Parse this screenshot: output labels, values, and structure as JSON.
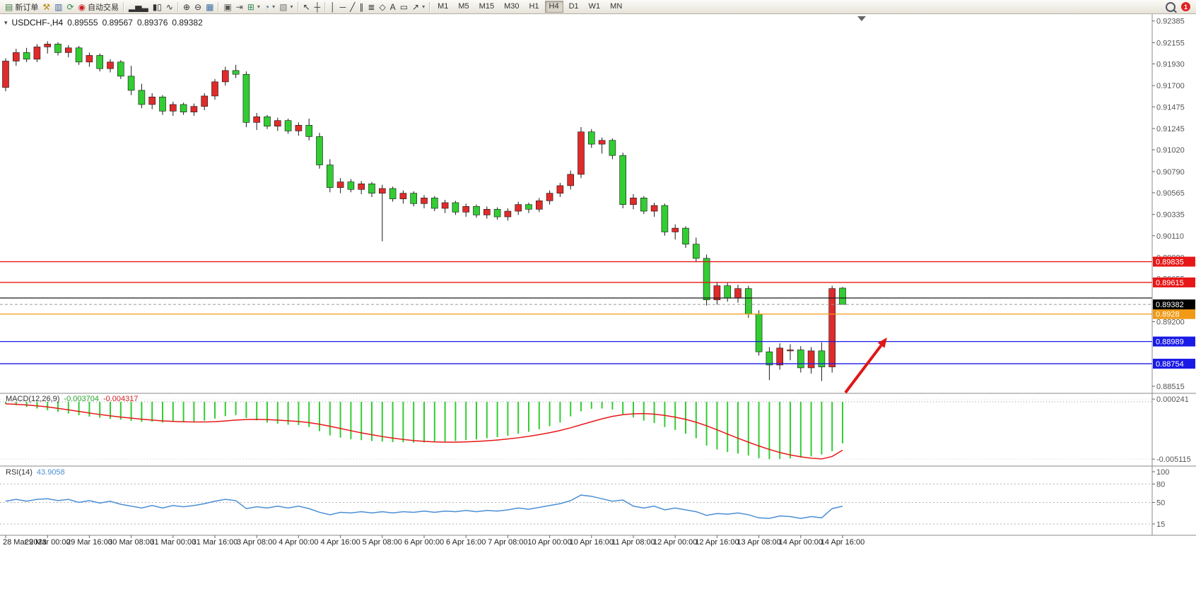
{
  "toolbar": {
    "buttons": [
      {
        "name": "new-order",
        "glyph": "▤",
        "color": "#3f7d3f",
        "label": "新订单"
      },
      {
        "name": "hammer-tool",
        "glyph": "⚒",
        "color": "#b8860b"
      },
      {
        "name": "chart-print",
        "glyph": "▥",
        "color": "#44689a"
      },
      {
        "name": "refresh",
        "glyph": "⟳",
        "color": "#2e8b57"
      },
      {
        "name": "auto-trading",
        "glyph": "◉",
        "color": "#cc2020",
        "label": "自动交易"
      },
      {
        "sep": true
      },
      {
        "name": "bar-chart-mode",
        "glyph": "▂▅▃",
        "color": "#333333"
      },
      {
        "name": "candlestick-mode",
        "glyph": "▮▯",
        "color": "#333333"
      },
      {
        "name": "line-chart-mode",
        "glyph": "∿",
        "color": "#333333"
      },
      {
        "sep": true
      },
      {
        "name": "zoom-in",
        "glyph": "⊕",
        "color": "#333333"
      },
      {
        "name": "zoom-out",
        "glyph": "⊖",
        "color": "#333333"
      },
      {
        "name": "tile-windows",
        "glyph": "▦",
        "color": "#3a6ea5"
      },
      {
        "sep": true
      },
      {
        "name": "auto-arrange",
        "glyph": "▣",
        "color": "#555555"
      },
      {
        "name": "chart-shift",
        "glyph": "⇥",
        "color": "#555555"
      },
      {
        "name": "indicators",
        "glyph": "⊞",
        "color": "#2e8b57",
        "dd": true
      },
      {
        "name": "periods",
        "glyph": "◔",
        "color": "#3a6ea5",
        "dd": true
      },
      {
        "name": "templates",
        "glyph": "▧",
        "color": "#777777",
        "dd": true
      },
      {
        "sep": true
      },
      {
        "name": "cursor",
        "glyph": "↖",
        "color": "#333333"
      },
      {
        "name": "crosshair",
        "glyph": "┼",
        "color": "#333333"
      },
      {
        "sep": true
      },
      {
        "name": "vertical-line",
        "glyph": "│",
        "color": "#333333"
      },
      {
        "name": "horizontal-line",
        "glyph": "─",
        "color": "#333333"
      },
      {
        "name": "trendline",
        "glyph": "╱",
        "color": "#333333"
      },
      {
        "name": "equidistant-channel",
        "glyph": "∥",
        "color": "#333333"
      },
      {
        "name": "fibonacci",
        "glyph": "≣",
        "color": "#333333"
      },
      {
        "name": "shapes",
        "glyph": "◇",
        "color": "#333333"
      },
      {
        "name": "text",
        "glyph": "A",
        "color": "#333333"
      },
      {
        "name": "text-label",
        "glyph": "▭",
        "color": "#333333"
      },
      {
        "name": "arrows",
        "glyph": "↗",
        "color": "#333333",
        "dd": true
      },
      {
        "sep": true
      }
    ],
    "timeframes": [
      "M1",
      "M5",
      "M15",
      "M30",
      "H1",
      "H4",
      "D1",
      "W1",
      "MN"
    ],
    "active_timeframe": "H4",
    "badge_count": "1"
  },
  "chart": {
    "title_marker": "▾",
    "symbol_title": "USDCHF-,H4",
    "open": "0.89555",
    "high": "0.89567",
    "low": "0.89376",
    "close": "0.89382"
  },
  "chart_data": {
    "type": "candlestick",
    "symbol": "USDCHF-",
    "timeframe": "H4",
    "price_axis": {
      "max": 0.9242,
      "min": 0.8847,
      "values": [
        0.92385,
        0.92155,
        0.9193,
        0.917,
        0.91475,
        0.91245,
        0.9102,
        0.9079,
        0.90565,
        0.90335,
        0.9011,
        0.8988,
        0.89655,
        0.892,
        0.88515
      ]
    },
    "time_labels": [
      {
        "i": 0,
        "t": "28 Mar 2023"
      },
      {
        "i": 4,
        "t": "29 Mar 00:00"
      },
      {
        "i": 8,
        "t": "29 Mar 16:00"
      },
      {
        "i": 12,
        "t": "30 Mar 08:00"
      },
      {
        "i": 16,
        "t": "31 Mar 00:00"
      },
      {
        "i": 20,
        "t": "31 Mar 16:00"
      },
      {
        "i": 24,
        "t": "3 Apr 08:00"
      },
      {
        "i": 28,
        "t": "4 Apr 00:00"
      },
      {
        "i": 32,
        "t": "4 Apr 16:00"
      },
      {
        "i": 36,
        "t": "5 Apr 08:00"
      },
      {
        "i": 40,
        "t": "6 Apr 00:00"
      },
      {
        "i": 44,
        "t": "6 Apr 16:00"
      },
      {
        "i": 48,
        "t": "7 Apr 08:00"
      },
      {
        "i": 52,
        "t": "10 Apr 00:00"
      },
      {
        "i": 56,
        "t": "10 Apr 16:00"
      },
      {
        "i": 60,
        "t": "11 Apr 08:00"
      },
      {
        "i": 64,
        "t": "12 Apr 00:00"
      },
      {
        "i": 68,
        "t": "12 Apr 16:00"
      },
      {
        "i": 72,
        "t": "13 Apr 08:00"
      },
      {
        "i": 76,
        "t": "14 Apr 00:00"
      },
      {
        "i": 80,
        "t": "14 Apr 16:00"
      }
    ],
    "candles_ohlc": [
      [
        0.9168,
        0.9199,
        0.9164,
        0.9196
      ],
      [
        0.9196,
        0.9209,
        0.9191,
        0.9205
      ],
      [
        0.9205,
        0.921,
        0.9195,
        0.9198
      ],
      [
        0.9198,
        0.9214,
        0.9195,
        0.9211
      ],
      [
        0.9211,
        0.9217,
        0.9204,
        0.9214
      ],
      [
        0.9214,
        0.9216,
        0.9202,
        0.9205
      ],
      [
        0.9205,
        0.9213,
        0.92,
        0.921
      ],
      [
        0.921,
        0.9212,
        0.9192,
        0.9195
      ],
      [
        0.9195,
        0.9205,
        0.919,
        0.9202
      ],
      [
        0.9202,
        0.9204,
        0.9185,
        0.9188
      ],
      [
        0.9188,
        0.9198,
        0.9184,
        0.9195
      ],
      [
        0.9195,
        0.9197,
        0.9177,
        0.918
      ],
      [
        0.918,
        0.9191,
        0.916,
        0.9165
      ],
      [
        0.9165,
        0.9172,
        0.9146,
        0.915
      ],
      [
        0.915,
        0.9162,
        0.9145,
        0.9158
      ],
      [
        0.9158,
        0.916,
        0.9139,
        0.9143
      ],
      [
        0.9143,
        0.9153,
        0.9138,
        0.915
      ],
      [
        0.915,
        0.9152,
        0.9139,
        0.9142
      ],
      [
        0.9142,
        0.9151,
        0.9138,
        0.9148
      ],
      [
        0.9148,
        0.9162,
        0.9144,
        0.9159
      ],
      [
        0.9159,
        0.9177,
        0.9155,
        0.9174
      ],
      [
        0.9174,
        0.919,
        0.917,
        0.9186
      ],
      [
        0.9186,
        0.9192,
        0.9178,
        0.9182
      ],
      [
        0.9182,
        0.9185,
        0.9126,
        0.9131
      ],
      [
        0.9131,
        0.9141,
        0.9123,
        0.9137
      ],
      [
        0.9137,
        0.9139,
        0.9124,
        0.9127
      ],
      [
        0.9127,
        0.9136,
        0.9122,
        0.9133
      ],
      [
        0.9133,
        0.9135,
        0.9119,
        0.9122
      ],
      [
        0.9122,
        0.9131,
        0.9117,
        0.9128
      ],
      [
        0.9128,
        0.9135,
        0.9112,
        0.9116
      ],
      [
        0.9116,
        0.912,
        0.9082,
        0.9086
      ],
      [
        0.9086,
        0.9092,
        0.9057,
        0.9062
      ],
      [
        0.9062,
        0.9072,
        0.9056,
        0.9068
      ],
      [
        0.9068,
        0.9071,
        0.9057,
        0.906
      ],
      [
        0.906,
        0.9069,
        0.9055,
        0.9066
      ],
      [
        0.9066,
        0.9068,
        0.9052,
        0.9056
      ],
      [
        0.9056,
        0.9065,
        0.9005,
        0.9061
      ],
      [
        0.9061,
        0.9063,
        0.9047,
        0.905
      ],
      [
        0.905,
        0.9059,
        0.9045,
        0.9056
      ],
      [
        0.9056,
        0.9058,
        0.9042,
        0.9045
      ],
      [
        0.9045,
        0.9054,
        0.904,
        0.9051
      ],
      [
        0.9051,
        0.9053,
        0.9037,
        0.904
      ],
      [
        0.904,
        0.9049,
        0.9035,
        0.9046
      ],
      [
        0.9046,
        0.9048,
        0.9033,
        0.9036
      ],
      [
        0.9036,
        0.9045,
        0.9031,
        0.9042
      ],
      [
        0.9042,
        0.9044,
        0.903,
        0.9033
      ],
      [
        0.9033,
        0.9042,
        0.9029,
        0.9039
      ],
      [
        0.9039,
        0.9041,
        0.9028,
        0.9031
      ],
      [
        0.9031,
        0.904,
        0.9027,
        0.9037
      ],
      [
        0.9037,
        0.9047,
        0.9033,
        0.9044
      ],
      [
        0.9044,
        0.9046,
        0.9035,
        0.9039
      ],
      [
        0.9039,
        0.9051,
        0.9036,
        0.9048
      ],
      [
        0.9048,
        0.9059,
        0.9044,
        0.9056
      ],
      [
        0.9056,
        0.9067,
        0.9052,
        0.9064
      ],
      [
        0.9064,
        0.908,
        0.906,
        0.9076
      ],
      [
        0.9076,
        0.9126,
        0.9072,
        0.9121
      ],
      [
        0.9121,
        0.9124,
        0.9104,
        0.9108
      ],
      [
        0.9108,
        0.9115,
        0.9098,
        0.9112
      ],
      [
        0.9112,
        0.9114,
        0.9092,
        0.9096
      ],
      [
        0.9096,
        0.9099,
        0.904,
        0.9044
      ],
      [
        0.9044,
        0.9055,
        0.9039,
        0.9051
      ],
      [
        0.9051,
        0.9053,
        0.9034,
        0.9037
      ],
      [
        0.9037,
        0.9046,
        0.9031,
        0.9043
      ],
      [
        0.9043,
        0.9045,
        0.9011,
        0.9015
      ],
      [
        0.9015,
        0.9023,
        0.9007,
        0.9019
      ],
      [
        0.9019,
        0.9021,
        0.8998,
        0.9002
      ],
      [
        0.9002,
        0.9009,
        0.8983,
        0.8987
      ],
      [
        0.8987,
        0.8991,
        0.8937,
        0.8943
      ],
      [
        0.8943,
        0.8962,
        0.8938,
        0.8958
      ],
      [
        0.8958,
        0.8961,
        0.8941,
        0.8945
      ],
      [
        0.8945,
        0.8959,
        0.894,
        0.8955
      ],
      [
        0.8955,
        0.8958,
        0.8924,
        0.8928
      ],
      [
        0.8928,
        0.8932,
        0.8884,
        0.8888
      ],
      [
        0.8888,
        0.8893,
        0.8858,
        0.8874
      ],
      [
        0.8874,
        0.8897,
        0.8869,
        0.8892
      ],
      [
        0.889,
        0.8896,
        0.8879,
        0.889
      ],
      [
        0.889,
        0.8894,
        0.8866,
        0.8871
      ],
      [
        0.8871,
        0.8893,
        0.8865,
        0.8889
      ],
      [
        0.8889,
        0.8898,
        0.8857,
        0.8872
      ],
      [
        0.8872,
        0.8958,
        0.8866,
        0.8955
      ],
      [
        0.89555,
        0.89567,
        0.89376,
        0.89382
      ]
    ],
    "indicators": {
      "macd": {
        "label": "MACD(12,26,9)",
        "main_value": "-0.003704",
        "signal_value": "-0.004317",
        "axis_labels": [
          "0.000241",
          "-0.005115"
        ],
        "axis_values": [
          0.000241,
          -0.005115
        ],
        "histogram": [
          -0.0002,
          -0.0003,
          -0.00045,
          -0.0006,
          -0.00075,
          -0.0009,
          -0.00105,
          -0.0012,
          -0.00132,
          -0.00143,
          -0.00152,
          -0.0016,
          -0.0017,
          -0.0018,
          -0.00178,
          -0.00185,
          -0.0018,
          -0.00183,
          -0.00178,
          -0.00168,
          -0.0015,
          -0.00128,
          -0.00118,
          -0.00145,
          -0.00165,
          -0.00185,
          -0.00195,
          -0.00205,
          -0.00208,
          -0.00225,
          -0.00262,
          -0.003,
          -0.0032,
          -0.00334,
          -0.00342,
          -0.0035,
          -0.00355,
          -0.0036,
          -0.00362,
          -0.00364,
          -0.00362,
          -0.0036,
          -0.00355,
          -0.0035,
          -0.00342,
          -0.00335,
          -0.00325,
          -0.00315,
          -0.00302,
          -0.00285,
          -0.00268,
          -0.00245,
          -0.00218,
          -0.00185,
          -0.0013,
          -0.00085,
          -0.00062,
          -0.0006,
          -0.0007,
          -0.0011,
          -0.0014,
          -0.00168,
          -0.0019,
          -0.00225,
          -0.00252,
          -0.00285,
          -0.00325,
          -0.0039,
          -0.00425,
          -0.00448,
          -0.00462,
          -0.0048,
          -0.00503,
          -0.00512,
          -0.0051,
          -0.00505,
          -0.00498,
          -0.00488,
          -0.0047,
          -0.0044,
          -0.003704
        ],
        "signal": [
          -0.00018,
          -0.00022,
          -0.00028,
          -0.00036,
          -0.00046,
          -0.00058,
          -0.00072,
          -0.00086,
          -0.001,
          -0.00113,
          -0.00125,
          -0.00136,
          -0.00146,
          -0.00155,
          -0.00163,
          -0.0017,
          -0.00175,
          -0.00178,
          -0.0018,
          -0.0018,
          -0.00177,
          -0.00171,
          -0.00163,
          -0.00158,
          -0.00157,
          -0.00159,
          -0.00163,
          -0.00169,
          -0.00176,
          -0.00186,
          -0.002,
          -0.00218,
          -0.00238,
          -0.00258,
          -0.00277,
          -0.00294,
          -0.0031,
          -0.00324,
          -0.00336,
          -0.00346,
          -0.00353,
          -0.00358,
          -0.0036,
          -0.0036,
          -0.00358,
          -0.00354,
          -0.00348,
          -0.00341,
          -0.00332,
          -0.00321,
          -0.00308,
          -0.00293,
          -0.00276,
          -0.00256,
          -0.00232,
          -0.00205,
          -0.00178,
          -0.00152,
          -0.0013,
          -0.00115,
          -0.00107,
          -0.00105,
          -0.0011,
          -0.00121,
          -0.00137,
          -0.00157,
          -0.00182,
          -0.00214,
          -0.0025,
          -0.00288,
          -0.00325,
          -0.0036,
          -0.00394,
          -0.00425,
          -0.00452,
          -0.00474,
          -0.00491,
          -0.00503,
          -0.0051,
          -0.00488,
          -0.004317
        ]
      },
      "rsi": {
        "label": "RSI(14)",
        "value": "43.9058",
        "axis_labels": [
          "100",
          "80",
          "50",
          "15"
        ],
        "axis_values": [
          100,
          80,
          50,
          15
        ],
        "levels": [
          80,
          50,
          15
        ],
        "values": [
          52,
          55,
          52,
          55,
          56,
          53,
          55,
          50,
          53,
          49,
          52,
          47,
          44,
          41,
          45,
          41,
          45,
          43,
          45,
          48,
          52,
          55,
          53,
          40,
          43,
          41,
          44,
          41,
          44,
          40,
          34,
          30,
          34,
          33,
          35,
          33,
          35,
          33,
          35,
          34,
          36,
          34,
          36,
          35,
          37,
          35,
          37,
          36,
          38,
          41,
          39,
          42,
          45,
          48,
          53,
          62,
          60,
          56,
          52,
          54,
          44,
          41,
          44,
          38,
          41,
          38,
          35,
          29,
          32,
          31,
          33,
          30,
          25,
          24,
          28,
          27,
          24,
          27,
          25,
          40,
          43.9
        ]
      }
    },
    "overlays": {
      "hlines": [
        {
          "price": 0.89835,
          "color": "#e81717",
          "label": "0.89835"
        },
        {
          "price": 0.89615,
          "color": "#e81717",
          "label": "0.89615"
        },
        {
          "price": 0.8945,
          "color": "#1a1a1a",
          "label": ""
        },
        {
          "price": 0.8928,
          "color": "#f09a15",
          "label": "0.8928"
        },
        {
          "price": 0.88989,
          "color": "#1a1ae6",
          "label": "0.88989"
        },
        {
          "price": 0.88754,
          "color": "#1a1ae6",
          "label": "0.88754"
        }
      ],
      "current_price": {
        "value": 0.89382,
        "label": "0.89382",
        "box_color": "#000000"
      },
      "arrow": {
        "from": [
          1196,
          556
        ],
        "to": [
          1255,
          478
        ],
        "color": "#e01616"
      }
    },
    "colors": {
      "up": "#e02b2b",
      "down": "#32cd32",
      "macd_hist": "#32cd32",
      "macd_signal": "#e81717",
      "rsi_line": "#4b8fd5"
    }
  }
}
